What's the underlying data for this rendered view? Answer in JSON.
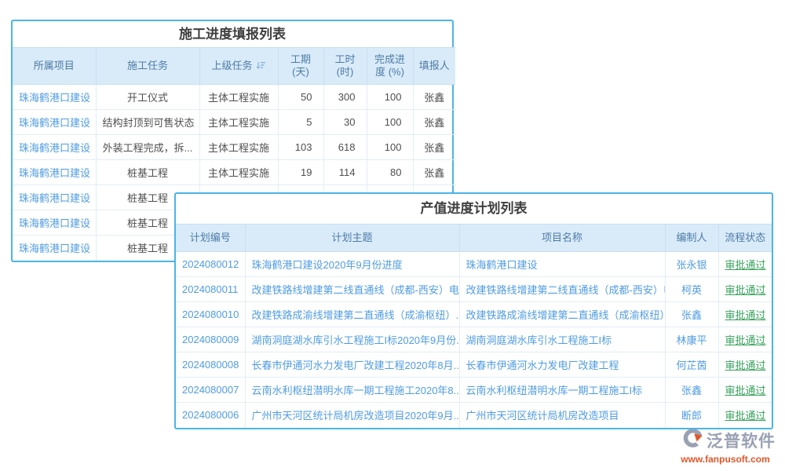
{
  "colors": {
    "table_border": "#4ab5e8",
    "header_bg": "#d9ebf9",
    "header_text": "#4e7ba6",
    "link_blue": "#4f9ce2",
    "body_text": "#4f4f4f",
    "status_green": "#36a25b",
    "logo_gray": "#99a1b3",
    "logo_orange": "#e2572b"
  },
  "construction_table": {
    "title": "施工进度填报列表",
    "columns": {
      "project": "所属项目",
      "task": "施工任务",
      "parent": "上级任务",
      "duration": "工期\n(天)",
      "hours": "工时\n(时)",
      "progress": "完成进\n度 (%)",
      "reporter": "填报人"
    },
    "rows": [
      {
        "project": "珠海鹤港口建设",
        "task": "开工仪式",
        "parent": "主体工程实施",
        "duration": "50",
        "hours": "300",
        "progress": "100",
        "reporter": "张鑫"
      },
      {
        "project": "珠海鹤港口建设",
        "task": "结构封顶到可售状态",
        "parent": "主体工程实施",
        "duration": "5",
        "hours": "30",
        "progress": "100",
        "reporter": "张鑫"
      },
      {
        "project": "珠海鹤港口建设",
        "task": "外装工程完成，拆...",
        "parent": "主体工程实施",
        "duration": "103",
        "hours": "618",
        "progress": "100",
        "reporter": "张鑫"
      },
      {
        "project": "珠海鹤港口建设",
        "task": "桩基工程",
        "parent": "主体工程实施",
        "duration": "19",
        "hours": "114",
        "progress": "80",
        "reporter": "张鑫"
      },
      {
        "project": "珠海鹤港口建设",
        "task": "桩基工程",
        "parent": "",
        "duration": "",
        "hours": "",
        "progress": "",
        "reporter": ""
      },
      {
        "project": "珠海鹤港口建设",
        "task": "桩基工程",
        "parent": "",
        "duration": "",
        "hours": "",
        "progress": "",
        "reporter": ""
      },
      {
        "project": "珠海鹤港口建设",
        "task": "桩基工程",
        "parent": "",
        "duration": "",
        "hours": "",
        "progress": "",
        "reporter": ""
      }
    ]
  },
  "plan_table": {
    "title": "产值进度计划列表",
    "columns": {
      "no": "计划编号",
      "topic": "计划主题",
      "project": "项目名称",
      "author": "编制人",
      "status": "流程状态"
    },
    "rows": [
      {
        "no": "2024080012",
        "topic": "珠海鹤港口建设2020年9月份进度",
        "project": "珠海鹤港口建设",
        "author": "张永银",
        "status": "审批通过"
      },
      {
        "no": "2024080011",
        "topic": "改建铁路线增建第二线直通线（成都-西安）电...",
        "project": "改建铁路线增建第二线直通线（成都-西安）电...",
        "author": "柯英",
        "status": "审批通过"
      },
      {
        "no": "2024080010",
        "topic": "改建铁路成渝线增建第二直通线（成渝枢纽）...",
        "project": "改建铁路成渝线增建第二直通线（成渝枢纽）...",
        "author": "张鑫",
        "status": "审批通过"
      },
      {
        "no": "2024080009",
        "topic": "湖南洞庭湖水库引水工程施工I标2020年9月份...",
        "project": "湖南洞庭湖水库引水工程施工I标",
        "author": "林康平",
        "status": "审批通过"
      },
      {
        "no": "2024080008",
        "topic": "长春市伊通河水力发电厂改建工程2020年8月...",
        "project": "长春市伊通河水力发电厂改建工程",
        "author": "何芷茵",
        "status": "审批通过"
      },
      {
        "no": "2024080007",
        "topic": "云南水利枢纽潜明水库一期工程施工2020年8...",
        "project": "云南水利枢纽潜明水库一期工程施工I标",
        "author": "张鑫",
        "status": "审批通过"
      },
      {
        "no": "2024080006",
        "topic": "广州市天河区统计局机房改造项目2020年9月...",
        "project": "广州市天河区统计局机房改造项目",
        "author": "断郎",
        "status": "审批通过"
      }
    ]
  },
  "logo": {
    "name": "泛普软件",
    "website": "www.fanpusoft.com"
  }
}
